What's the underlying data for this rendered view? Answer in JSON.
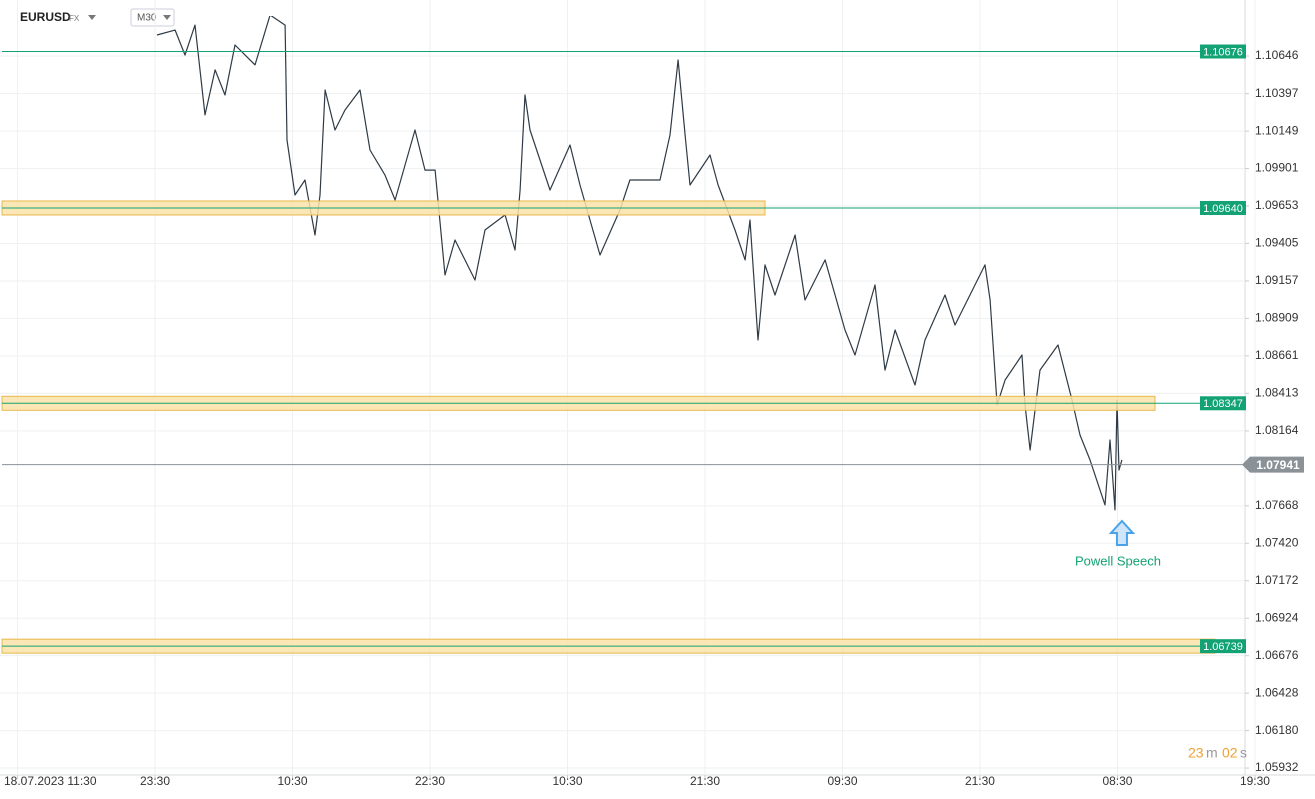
{
  "header": {
    "symbol": "EURUSD",
    "market": "FX",
    "timeframe": "M30"
  },
  "countdown": {
    "minutes": "23",
    "minutes_unit": "m",
    "seconds": "02",
    "seconds_unit": "s"
  },
  "chart_data": {
    "type": "line",
    "ylim": [
      1.05886,
      1.11017
    ],
    "xlim": [
      -1.53,
      107.13
    ],
    "grid": true,
    "yticks": [
      1.10646,
      1.10397,
      1.10149,
      1.09901,
      1.09653,
      1.09405,
      1.09157,
      1.08909,
      1.08661,
      1.08413,
      1.08164,
      1.07668,
      {
        "value": 1.0742,
        "label": "1.07420"
      },
      1.07172,
      1.06924,
      1.06676,
      1.06428,
      {
        "value": 1.0618,
        "label": "1.06180"
      },
      1.05932
    ],
    "xticks": [
      {
        "value": 0,
        "label": "18.07.2023  11:30"
      },
      {
        "value": 12,
        "label": "23:30"
      },
      {
        "value": 24,
        "label": "10:30"
      },
      {
        "value": 36,
        "label": "22:30"
      },
      {
        "value": 48,
        "label": "10:30"
      },
      {
        "value": 60,
        "label": "21:30"
      },
      {
        "value": 72,
        "label": "09:30"
      },
      {
        "value": 84,
        "label": "21:30"
      },
      {
        "value": 96,
        "label": "08:30"
      },
      {
        "value": 108,
        "label": "19:30"
      }
    ],
    "series": [
      {
        "name": "EURUSD",
        "color": "#2e3a45",
        "x": [
          12.17,
          13.75,
          14.62,
          15.49,
          16.36,
          17.24,
          18.11,
          18.98,
          20.73,
          22.04,
          23.35,
          23.52,
          24.22,
          25.09,
          25.96,
          26.4,
          26.84,
          27.71,
          28.58,
          29.89,
          30.76,
          32.07,
          32.95,
          34.69,
          35.56,
          36.44,
          37.31,
          38.18,
          39.93,
          40.8,
          42.55,
          43.42,
          43.86,
          44.29,
          44.73,
          46.47,
          48.22,
          49.09,
          50.84,
          52.58,
          53.45,
          56.07,
          56.95,
          57.65,
          58.26,
          58.69,
          60.44,
          61.14,
          62.62,
          63.5,
          63.93,
          64.63,
          65.24,
          66.11,
          67.86,
          68.73,
          70.48,
          72.22,
          73.09,
          74.84,
          75.71,
          76.59,
          78.33,
          79.2,
          80.95,
          81.82,
          84.44,
          84.88,
          85.49,
          86.19,
          87.67,
          87.93,
          88.37,
          89.24,
          90.81,
          92.03,
          92.73,
          93.6,
          94.91,
          95.35,
          95.78,
          95.96,
          96.13,
          96.39
        ],
        "values": [
          1.10785,
          1.10818,
          1.10653,
          1.10851,
          1.10256,
          1.10554,
          1.10388,
          1.10719,
          1.10587,
          1.10918,
          1.10851,
          1.1009,
          1.09726,
          1.09825,
          1.09461,
          1.09726,
          1.10421,
          1.10156,
          1.10289,
          1.10421,
          1.10024,
          1.09858,
          1.09693,
          1.10156,
          1.09891,
          1.09891,
          1.09196,
          1.09428,
          1.09163,
          1.09494,
          1.09594,
          1.09362,
          1.09759,
          1.10388,
          1.10156,
          1.09759,
          1.10057,
          1.09792,
          1.09329,
          1.09627,
          1.09825,
          1.09825,
          1.10123,
          1.1062,
          1.10123,
          1.09792,
          1.09991,
          1.09792,
          1.09494,
          1.09296,
          1.0956,
          1.08766,
          1.09263,
          1.09064,
          1.09461,
          1.09031,
          1.09296,
          1.08832,
          1.08667,
          1.0913,
          1.08567,
          1.08832,
          1.08468,
          1.08766,
          1.09064,
          1.08865,
          1.09263,
          1.09031,
          1.08336,
          1.08501,
          1.08667,
          1.08336,
          1.08038,
          1.08567,
          1.08733,
          1.08369,
          1.08137,
          1.07972,
          1.07674,
          1.08104,
          1.07641,
          1.08369,
          1.07905,
          1.07972
        ]
      }
    ],
    "levels": [
      {
        "value": 1.10676,
        "label": "1.10676",
        "zone": false
      },
      {
        "value": 1.0964,
        "label": "1.09640",
        "zone": true
      },
      {
        "value": 1.08347,
        "label": "1.08347",
        "zone": true
      },
      {
        "value": 1.06739,
        "label": "1.06739",
        "zone": true
      }
    ],
    "level_color": "#13a273",
    "zone_color": "#f9e3a8",
    "current_price": 1.07941,
    "current_price_color": "#8a9197",
    "annotation": {
      "text": "Powell Speech",
      "x": 96.39,
      "color": "#13a273",
      "arrow_color": "#4aa3e8"
    }
  }
}
